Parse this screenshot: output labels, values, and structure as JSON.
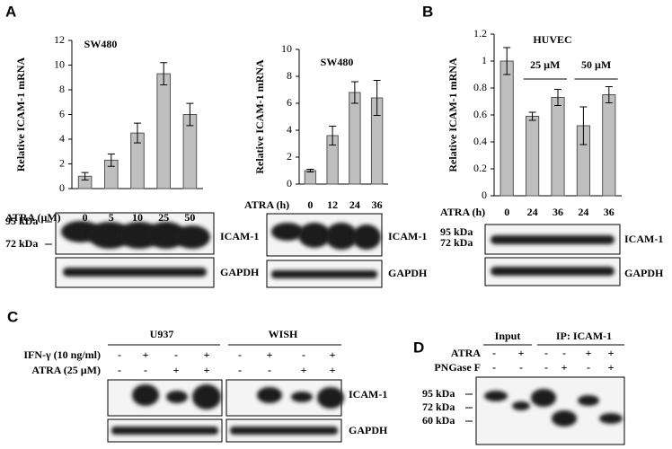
{
  "panel_labels": [
    "A",
    "B",
    "C",
    "D"
  ],
  "chart_data": [
    {
      "type": "bar",
      "title": "SW480",
      "y_label": "Relative ICAM-1 mRNA",
      "x_label": "ATRA (µM)",
      "categories": [
        "0",
        "5",
        "10",
        "25",
        "50"
      ],
      "values": [
        1.0,
        2.3,
        4.5,
        9.3,
        6.0
      ],
      "errors": [
        0.3,
        0.5,
        0.8,
        0.9,
        0.9
      ],
      "color": "#bfbfbf",
      "ylim": [
        0,
        12
      ],
      "yticks": [
        0,
        2,
        4,
        6,
        8,
        10,
        12
      ]
    },
    {
      "type": "bar",
      "title": "SW480",
      "y_label": "Relative ICAM-1 mRNA",
      "x_label": "ATRA (h)",
      "categories": [
        "0",
        "12",
        "24",
        "36"
      ],
      "values": [
        1.0,
        3.6,
        6.8,
        6.4
      ],
      "errors": [
        0.1,
        0.7,
        0.8,
        1.3
      ],
      "color": "#bfbfbf",
      "ylim": [
        0,
        10
      ],
      "yticks": [
        0,
        2,
        4,
        6,
        8,
        10
      ]
    },
    {
      "type": "bar",
      "title": "HUVEC",
      "y_label": "Relative ICAM-1 mRNA",
      "x_label": "ATRA (h)",
      "categories": [
        "0",
        "24",
        "36",
        "24",
        "36"
      ],
      "values": [
        1.0,
        0.59,
        0.73,
        0.52,
        0.75
      ],
      "errors": [
        0.1,
        0.03,
        0.06,
        0.14,
        0.06
      ],
      "group_labels": [
        "25 µM",
        "50 µM"
      ],
      "color": "#bfbfbf",
      "ylim": [
        0,
        1.2
      ],
      "yticks": [
        0,
        0.2,
        0.4,
        0.6,
        0.8,
        1,
        1.2
      ]
    }
  ],
  "blots": {
    "a1": {
      "markers": [
        "95 kDa",
        "72 kDa"
      ],
      "bands": [
        "ICAM-1",
        "GAPDH"
      ]
    },
    "a2": {
      "bands": [
        "ICAM-1",
        "GAPDH"
      ]
    },
    "b": {
      "markers": [
        "95 kDa",
        "72 kDa"
      ],
      "bands": [
        "ICAM-1",
        "GAPDH"
      ]
    },
    "c": {
      "groups": [
        "U937",
        "WISH"
      ],
      "rows": [
        {
          "label": "IFN-γ (10 ng/ml)",
          "signs": [
            "-",
            "+",
            "-",
            "+",
            "-",
            "+",
            "-",
            "+"
          ]
        },
        {
          "label": "ATRA (25 µM)",
          "signs": [
            "-",
            "-",
            "+",
            "+",
            "-",
            "-",
            "+",
            "+"
          ]
        }
      ],
      "bands": [
        "ICAM-1",
        "GAPDH"
      ]
    },
    "d": {
      "groups": [
        "Input",
        "IP: ICAM-1"
      ],
      "rows": [
        {
          "label": "ATRA",
          "signs": [
            "-",
            "+",
            "-",
            "-",
            "+",
            "+"
          ]
        },
        {
          "label": "PNGase F",
          "signs": [
            "-",
            "-",
            "-",
            "+",
            "-",
            "+"
          ]
        }
      ],
      "markers": [
        "95 kDa",
        "72 kDa",
        "60 kDa"
      ]
    }
  }
}
